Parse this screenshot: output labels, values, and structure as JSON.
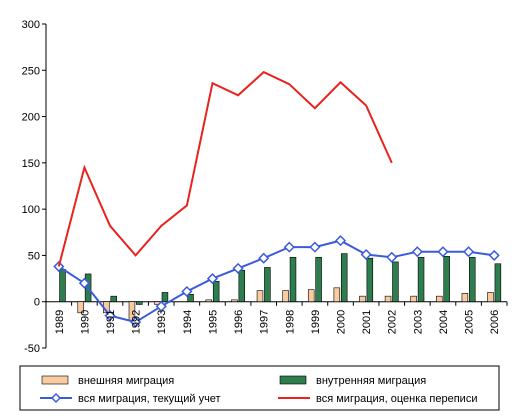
{
  "chart_data": {
    "type": "bar",
    "categories": [
      "1989",
      "1990",
      "1991",
      "1992",
      "1993",
      "1994",
      "1995",
      "1996",
      "1997",
      "1998",
      "1999",
      "2000",
      "2001",
      "2002",
      "2003",
      "2004",
      "2005",
      "2006"
    ],
    "ylim": [
      -50,
      300
    ],
    "yticks": [
      -50,
      0,
      50,
      100,
      150,
      200,
      250,
      300
    ],
    "grid": false,
    "legend_position": "bottom",
    "series": [
      {
        "name": "внешняя миграция",
        "kind": "bar",
        "color": "#F8CBA0",
        "values": [
          0,
          -12,
          -12,
          -20,
          -3,
          0,
          2,
          2,
          12,
          12,
          13,
          15,
          6,
          6,
          6,
          6,
          9,
          10
        ]
      },
      {
        "name": "внутренняя миграция",
        "kind": "bar",
        "color": "#2E7D4F",
        "values": [
          35,
          30,
          6,
          -3,
          10,
          8,
          22,
          34,
          37,
          48,
          48,
          52,
          47,
          43,
          48,
          49,
          48,
          41
        ]
      },
      {
        "name": "вся миграция, текущий учет",
        "kind": "line",
        "color": "#3B5BDB",
        "marker": "diamond",
        "values": [
          38,
          20,
          -15,
          -22,
          -5,
          11,
          25,
          36,
          47,
          59,
          59,
          66,
          51,
          48,
          54,
          54,
          54,
          50
        ]
      },
      {
        "name": "вся миграция, оценка переписи",
        "kind": "line",
        "color": "#E8231E",
        "values": [
          38,
          145,
          82,
          50,
          82,
          104,
          236,
          223,
          248,
          235,
          209,
          237,
          212,
          150,
          null,
          null,
          null,
          null
        ]
      }
    ]
  }
}
